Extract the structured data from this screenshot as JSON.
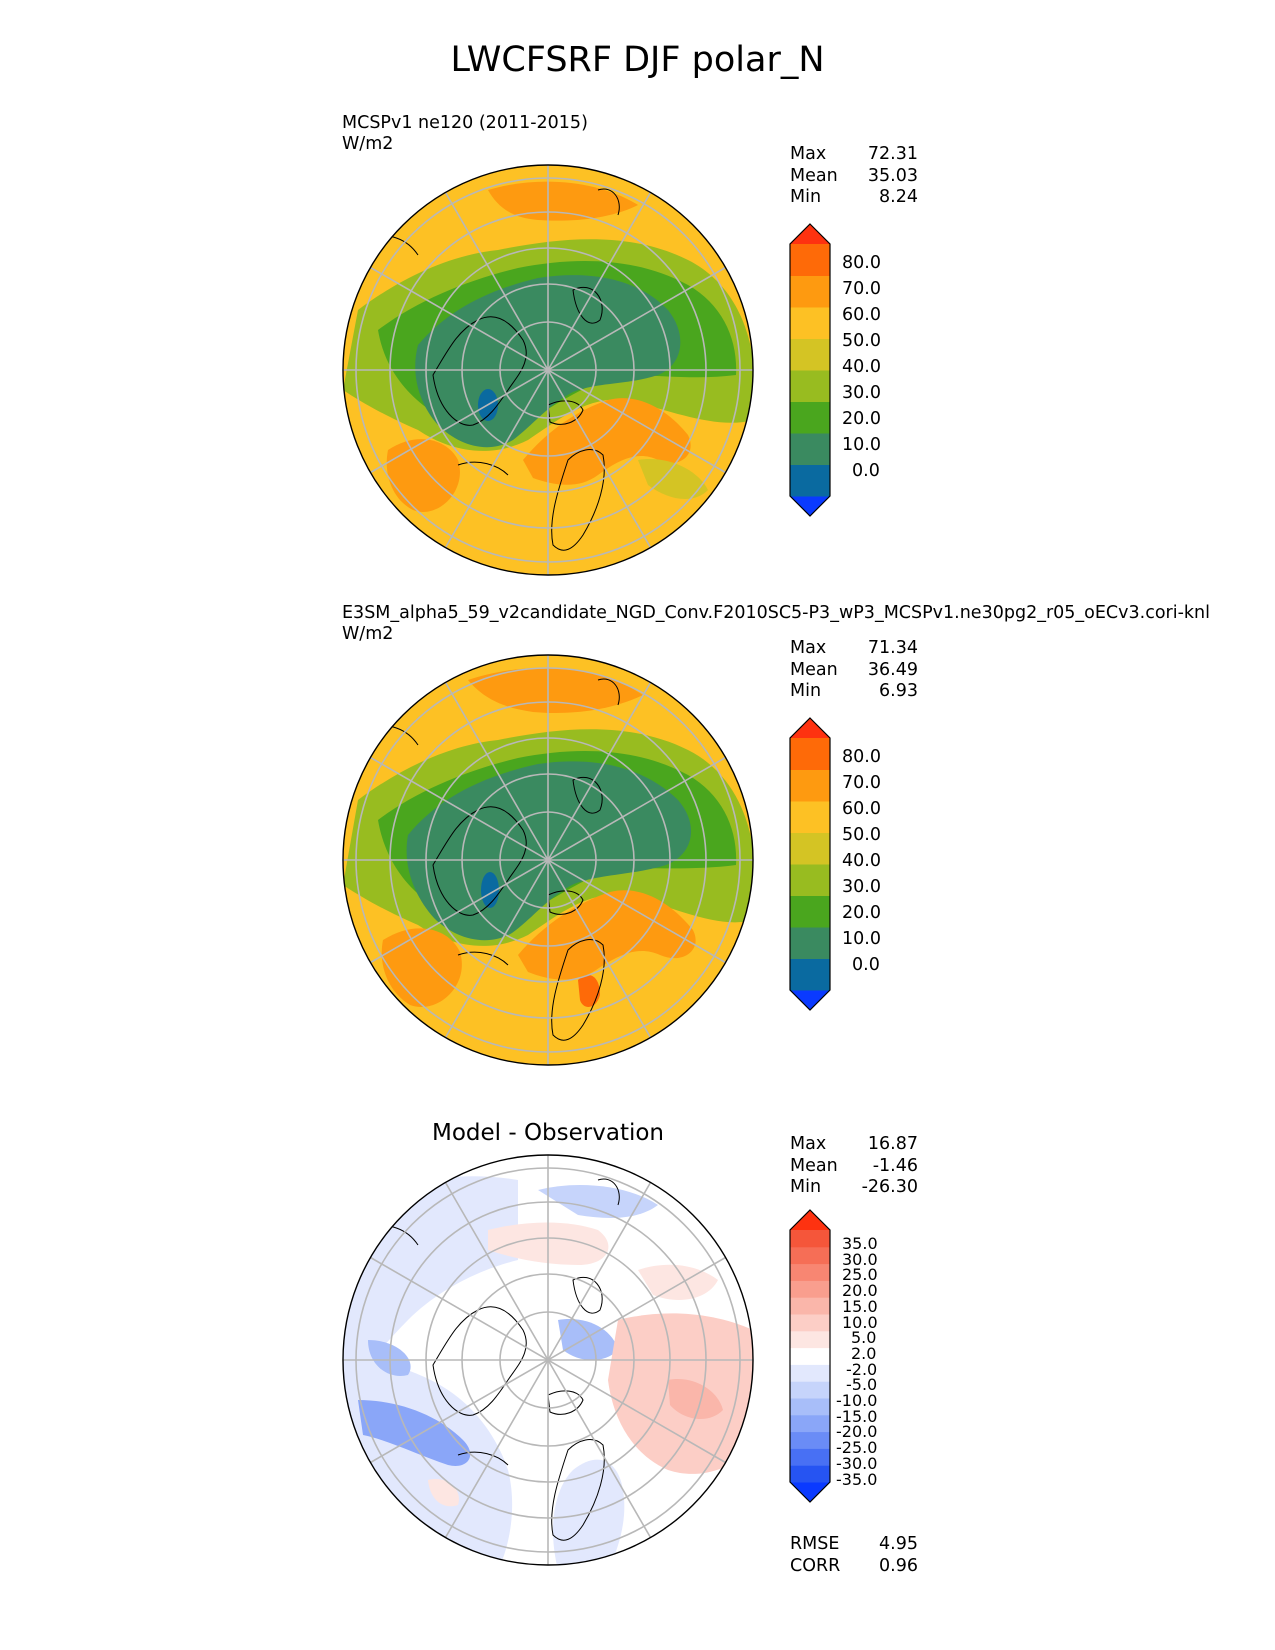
{
  "figure": {
    "title": "LWCFSRF DJF polar_N",
    "colors": {
      "test_levels": [
        "#0a3aff",
        "#0a6aa0",
        "#3a8a60",
        "#4aa61e",
        "#98bc20",
        "#d4c424",
        "#fdc124",
        "#fe9a10",
        "#fe6a08",
        "#fe3210"
      ],
      "diff_levels": [
        "#0a3aff",
        "#2654f2",
        "#4870f4",
        "#6a8cf6",
        "#8aa6f8",
        "#a8bef9",
        "#c6d4fb",
        "#e2e8fd",
        "#ffffff",
        "#fde6e2",
        "#fccec6",
        "#fab6aa",
        "#f99e8e",
        "#f88672",
        "#f66e56",
        "#f5563a",
        "#fe3210"
      ]
    }
  },
  "panels": [
    {
      "id": "test",
      "title": "MCSPv1 ne120 (2011-2015)",
      "units": "W/m2",
      "stats": {
        "max_label": "Max",
        "max": "72.31",
        "mean_label": "Mean",
        "mean": "35.03",
        "min_label": "Min",
        "min": "8.24"
      },
      "colorbar_ticks": [
        "80.0",
        "70.0",
        "60.0",
        "50.0",
        "40.0",
        "30.0",
        "20.0",
        "10.0",
        "0.0"
      ]
    },
    {
      "id": "ref",
      "title": "E3SM_alpha5_59_v2candidate_NGD_Conv.F2010SC5-P3_wP3_MCSPv1.ne30pg2_r05_oECv3.cori-knl",
      "units": "W/m2",
      "stats": {
        "max_label": "Max",
        "max": "71.34",
        "mean_label": "Mean",
        "mean": "36.49",
        "min_label": "Min",
        "min": "6.93"
      },
      "colorbar_ticks": [
        "80.0",
        "70.0",
        "60.0",
        "50.0",
        "40.0",
        "30.0",
        "20.0",
        "10.0",
        "0.0"
      ]
    },
    {
      "id": "diff",
      "title": "Model - Observation",
      "stats": {
        "max_label": "Max",
        "max": "16.87",
        "mean_label": "Mean",
        "mean": "-1.46",
        "min_label": "Min",
        "min": "-26.30"
      },
      "colorbar_ticks": [
        "35.0",
        "30.0",
        "25.0",
        "20.0",
        "15.0",
        "10.0",
        "5.0",
        "2.0",
        "-2.0",
        "-5.0",
        "-10.0",
        "-15.0",
        "-20.0",
        "-25.0",
        "-30.0",
        "-35.0"
      ],
      "metrics": {
        "rmse_label": "RMSE",
        "rmse": "4.95",
        "corr_label": "CORR",
        "corr": "0.96"
      }
    }
  ]
}
